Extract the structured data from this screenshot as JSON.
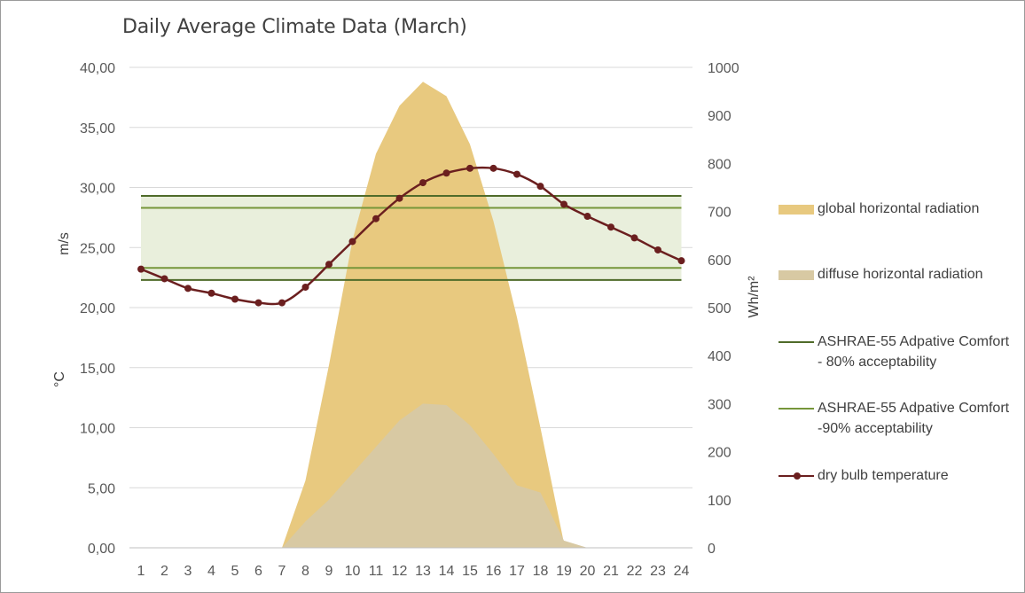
{
  "chart_data": {
    "type": "area+line",
    "title": "Daily Average Climate Data (March)",
    "x": [
      1,
      2,
      3,
      4,
      5,
      6,
      7,
      8,
      9,
      10,
      11,
      12,
      13,
      14,
      15,
      16,
      17,
      18,
      19,
      20,
      21,
      22,
      23,
      24
    ],
    "xlabel": "",
    "y_left": {
      "label_top": "m/s",
      "label_bottom": "°C",
      "range": [
        0,
        40
      ],
      "ticks": [
        "0,00",
        "5,00",
        "10,00",
        "15,00",
        "20,00",
        "25,00",
        "30,00",
        "35,00",
        "40,00"
      ],
      "tick_values": [
        0,
        5,
        10,
        15,
        20,
        25,
        30,
        35,
        40
      ]
    },
    "y_right": {
      "label": "Wh/m²",
      "range": [
        0,
        1000
      ],
      "ticks": [
        "0",
        "100",
        "200",
        "300",
        "400",
        "500",
        "600",
        "700",
        "800",
        "900",
        "1000"
      ],
      "tick_values": [
        0,
        100,
        200,
        300,
        400,
        500,
        600,
        700,
        800,
        900,
        1000
      ]
    },
    "series": [
      {
        "name": "global horizontal radiation",
        "type": "area",
        "axis": "right",
        "color": "#e8c97f",
        "values": [
          0,
          0,
          0,
          0,
          0,
          0,
          0,
          140,
          380,
          640,
          820,
          920,
          970,
          940,
          840,
          680,
          480,
          250,
          10,
          0,
          0,
          0,
          0,
          0
        ]
      },
      {
        "name": "diffuse horizontal radiation",
        "type": "area",
        "axis": "right",
        "color": "#d8c9a3",
        "values": [
          0,
          0,
          0,
          0,
          0,
          0,
          0,
          55,
          100,
          155,
          210,
          265,
          300,
          297,
          255,
          195,
          130,
          115,
          15,
          0,
          0,
          0,
          0,
          0
        ]
      },
      {
        "name": "dry bulb temperature",
        "type": "line",
        "axis": "left",
        "color": "#6b1f1f",
        "values": [
          23.2,
          22.4,
          21.6,
          21.2,
          20.7,
          20.4,
          20.4,
          21.7,
          23.6,
          25.5,
          27.4,
          29.1,
          30.4,
          31.2,
          31.6,
          31.6,
          31.1,
          30.1,
          28.6,
          27.6,
          26.7,
          25.8,
          24.8,
          23.9
        ]
      }
    ],
    "comfort_bands": [
      {
        "name": "ASHRAE-55 Adpative Comfort - 80% acceptability",
        "color": "#4f6b2a",
        "fill": "#e9efdc",
        "lower": 22.3,
        "upper": 29.3
      },
      {
        "name": "ASHRAE-55 Adpative Comfort -90% acceptability",
        "color": "#76963a",
        "lower": 23.3,
        "upper": 28.3
      }
    ],
    "legend": {
      "placement": "right",
      "entries": [
        {
          "label": "global horizontal radiation",
          "kind": "area",
          "color": "#e8c97f"
        },
        {
          "label": "diffuse horizontal radiation",
          "kind": "area",
          "color": "#d8c9a3"
        },
        {
          "label_line1": "ASHRAE-55 Adpative Comfort",
          "label_line2": "- 80% acceptability",
          "kind": "line",
          "color": "#4f6b2a"
        },
        {
          "label_line1": "ASHRAE-55 Adpative Comfort",
          "label_line2": "-90% acceptability",
          "kind": "line",
          "color": "#76963a"
        },
        {
          "label": "dry bulb temperature",
          "kind": "line-marker",
          "color": "#6b1f1f"
        }
      ]
    },
    "grid": true
  }
}
